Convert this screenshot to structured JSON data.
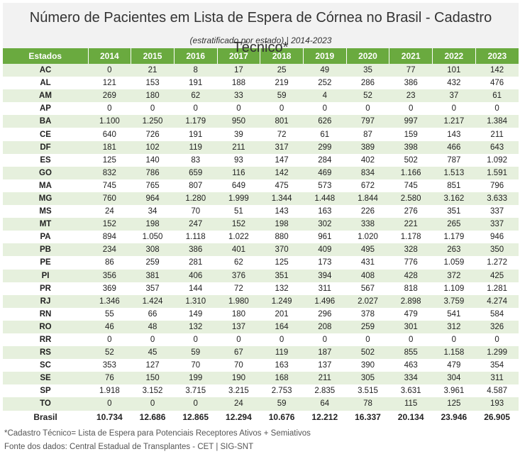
{
  "title": "Número de Pacientes em Lista de Espera de Córnea no Brasil - Cadastro Técnico*",
  "subtitle": "(estratificado por estado)  | 2014-2023",
  "columns": [
    "Estados",
    "2014",
    "2015",
    "2016",
    "2017",
    "2018",
    "2019",
    "2020",
    "2021",
    "2022",
    "2023"
  ],
  "rows": [
    [
      "AC",
      "0",
      "21",
      "8",
      "17",
      "25",
      "49",
      "35",
      "77",
      "101",
      "142"
    ],
    [
      "AL",
      "121",
      "153",
      "191",
      "188",
      "219",
      "252",
      "286",
      "386",
      "432",
      "476"
    ],
    [
      "AM",
      "269",
      "180",
      "62",
      "33",
      "59",
      "4",
      "52",
      "23",
      "37",
      "61"
    ],
    [
      "AP",
      "0",
      "0",
      "0",
      "0",
      "0",
      "0",
      "0",
      "0",
      "0",
      "0"
    ],
    [
      "BA",
      "1.100",
      "1.250",
      "1.179",
      "950",
      "801",
      "626",
      "797",
      "997",
      "1.217",
      "1.384"
    ],
    [
      "CE",
      "640",
      "726",
      "191",
      "39",
      "72",
      "61",
      "87",
      "159",
      "143",
      "211"
    ],
    [
      "DF",
      "181",
      "102",
      "119",
      "211",
      "317",
      "299",
      "389",
      "398",
      "466",
      "643"
    ],
    [
      "ES",
      "125",
      "140",
      "83",
      "93",
      "147",
      "284",
      "402",
      "502",
      "787",
      "1.092"
    ],
    [
      "GO",
      "832",
      "786",
      "659",
      "116",
      "142",
      "469",
      "834",
      "1.166",
      "1.513",
      "1.591"
    ],
    [
      "MA",
      "745",
      "765",
      "807",
      "649",
      "475",
      "573",
      "672",
      "745",
      "851",
      "796"
    ],
    [
      "MG",
      "760",
      "964",
      "1.280",
      "1.999",
      "1.344",
      "1.448",
      "1.844",
      "2.580",
      "3.162",
      "3.633"
    ],
    [
      "MS",
      "24",
      "34",
      "70",
      "51",
      "143",
      "163",
      "226",
      "276",
      "351",
      "337"
    ],
    [
      "MT",
      "152",
      "198",
      "247",
      "152",
      "198",
      "302",
      "338",
      "221",
      "265",
      "337"
    ],
    [
      "PA",
      "894",
      "1.050",
      "1.118",
      "1.022",
      "880",
      "961",
      "1.020",
      "1.178",
      "1.179",
      "946"
    ],
    [
      "PB",
      "234",
      "308",
      "386",
      "401",
      "370",
      "409",
      "495",
      "328",
      "263",
      "350"
    ],
    [
      "PE",
      "86",
      "259",
      "281",
      "62",
      "125",
      "173",
      "431",
      "776",
      "1.059",
      "1.272"
    ],
    [
      "PI",
      "356",
      "381",
      "406",
      "376",
      "351",
      "394",
      "408",
      "428",
      "372",
      "425"
    ],
    [
      "PR",
      "369",
      "357",
      "144",
      "72",
      "132",
      "311",
      "567",
      "818",
      "1.109",
      "1.281"
    ],
    [
      "RJ",
      "1.346",
      "1.424",
      "1.310",
      "1.980",
      "1.249",
      "1.496",
      "2.027",
      "2.898",
      "3.759",
      "4.274"
    ],
    [
      "RN",
      "55",
      "66",
      "149",
      "180",
      "201",
      "296",
      "378",
      "479",
      "541",
      "584"
    ],
    [
      "RO",
      "46",
      "48",
      "132",
      "137",
      "164",
      "208",
      "259",
      "301",
      "312",
      "326"
    ],
    [
      "RR",
      "0",
      "0",
      "0",
      "0",
      "0",
      "0",
      "0",
      "0",
      "0",
      "0"
    ],
    [
      "RS",
      "52",
      "45",
      "59",
      "67",
      "119",
      "187",
      "502",
      "855",
      "1.158",
      "1.299"
    ],
    [
      "SC",
      "353",
      "127",
      "70",
      "70",
      "163",
      "137",
      "390",
      "463",
      "479",
      "354"
    ],
    [
      "SE",
      "76",
      "150",
      "199",
      "190",
      "168",
      "211",
      "305",
      "334",
      "304",
      "311"
    ],
    [
      "SP",
      "1.918",
      "3.152",
      "3.715",
      "3.215",
      "2.753",
      "2.835",
      "3.515",
      "3.631",
      "3.961",
      "4.587"
    ],
    [
      "TO",
      "0",
      "0",
      "0",
      "24",
      "59",
      "64",
      "78",
      "115",
      "125",
      "193"
    ]
  ],
  "total": [
    "Brasil",
    "10.734",
    "12.686",
    "12.865",
    "12.294",
    "10.676",
    "12.212",
    "16.337",
    "20.134",
    "23.946",
    "26.905"
  ],
  "notes": {
    "definition": "*Cadastro Técnico= Lista de Espera para Potenciais Receptores Ativos + Semiativos",
    "source": "Fonte dos dados: Central Estadual de Transplantes - CET | SIG-SNT"
  },
  "colors": {
    "header": "#6aaa3f",
    "band": "#e6f0dd"
  }
}
